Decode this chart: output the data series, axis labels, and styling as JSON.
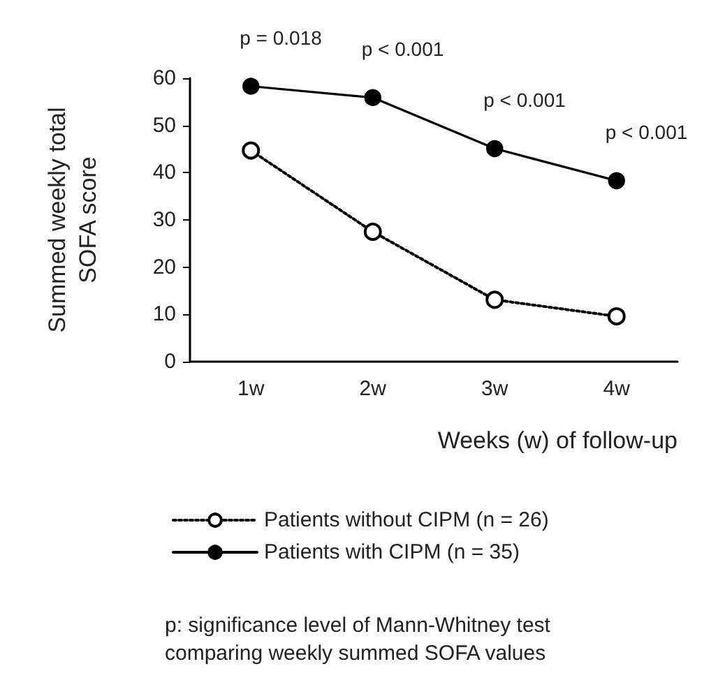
{
  "chart_data": {
    "type": "line",
    "ylabel": "Summed weekly total\nSOFA score",
    "xlabel": "Weeks (w) of follow-up",
    "categories": [
      "1w",
      "2w",
      "3w",
      "4w"
    ],
    "series": [
      {
        "name": "Patients without CIPM (n = 26)",
        "color": "#000000",
        "line_style": "dotted",
        "values": [
          44.7,
          27.5,
          13.1,
          9.6
        ]
      },
      {
        "name": "Patients with CIPM (n = 35)",
        "color": "#000000",
        "line_style": "solid",
        "values": [
          58.3,
          55.9,
          45.1,
          38.3
        ]
      }
    ],
    "ylim": [
      0,
      60
    ],
    "yticks": [
      0,
      10,
      20,
      30,
      40,
      50,
      60
    ],
    "grid": false,
    "legend": "bottom",
    "marker": "circle",
    "annotations": [
      "p = 0.018",
      "p < 0.001",
      "p < 0.001",
      "p < 0.001",
      "p: significance level of Mann-Whitney test\ncomparing weekly summed SOFA values"
    ]
  }
}
